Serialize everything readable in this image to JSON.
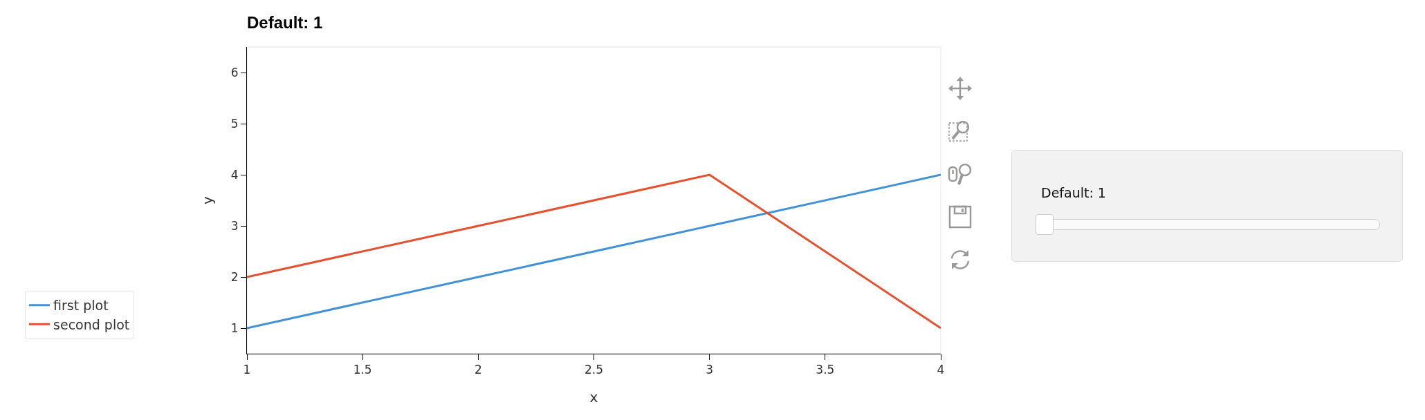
{
  "chart_data": {
    "type": "line",
    "title": "Default: 1",
    "xlabel": "x",
    "ylabel": "y",
    "x": [
      1,
      2,
      3,
      4
    ],
    "series": [
      {
        "name": "first plot",
        "color": "#4392d6",
        "values": [
          1,
          2,
          3,
          4
        ]
      },
      {
        "name": "second plot",
        "color": "#e5502f",
        "values": [
          2,
          3,
          4,
          1
        ]
      }
    ],
    "xlim": [
      1,
      4
    ],
    "xticks": [
      1,
      1.5,
      2,
      2.5,
      3,
      3.5,
      4
    ],
    "ylim": [
      0.5,
      6.5
    ],
    "yticks": [
      1,
      2,
      3,
      4,
      5,
      6
    ],
    "legend": "left",
    "marker": "none",
    "line_style": "solid",
    "annotations": [
      "Default: 1"
    ]
  }
}
